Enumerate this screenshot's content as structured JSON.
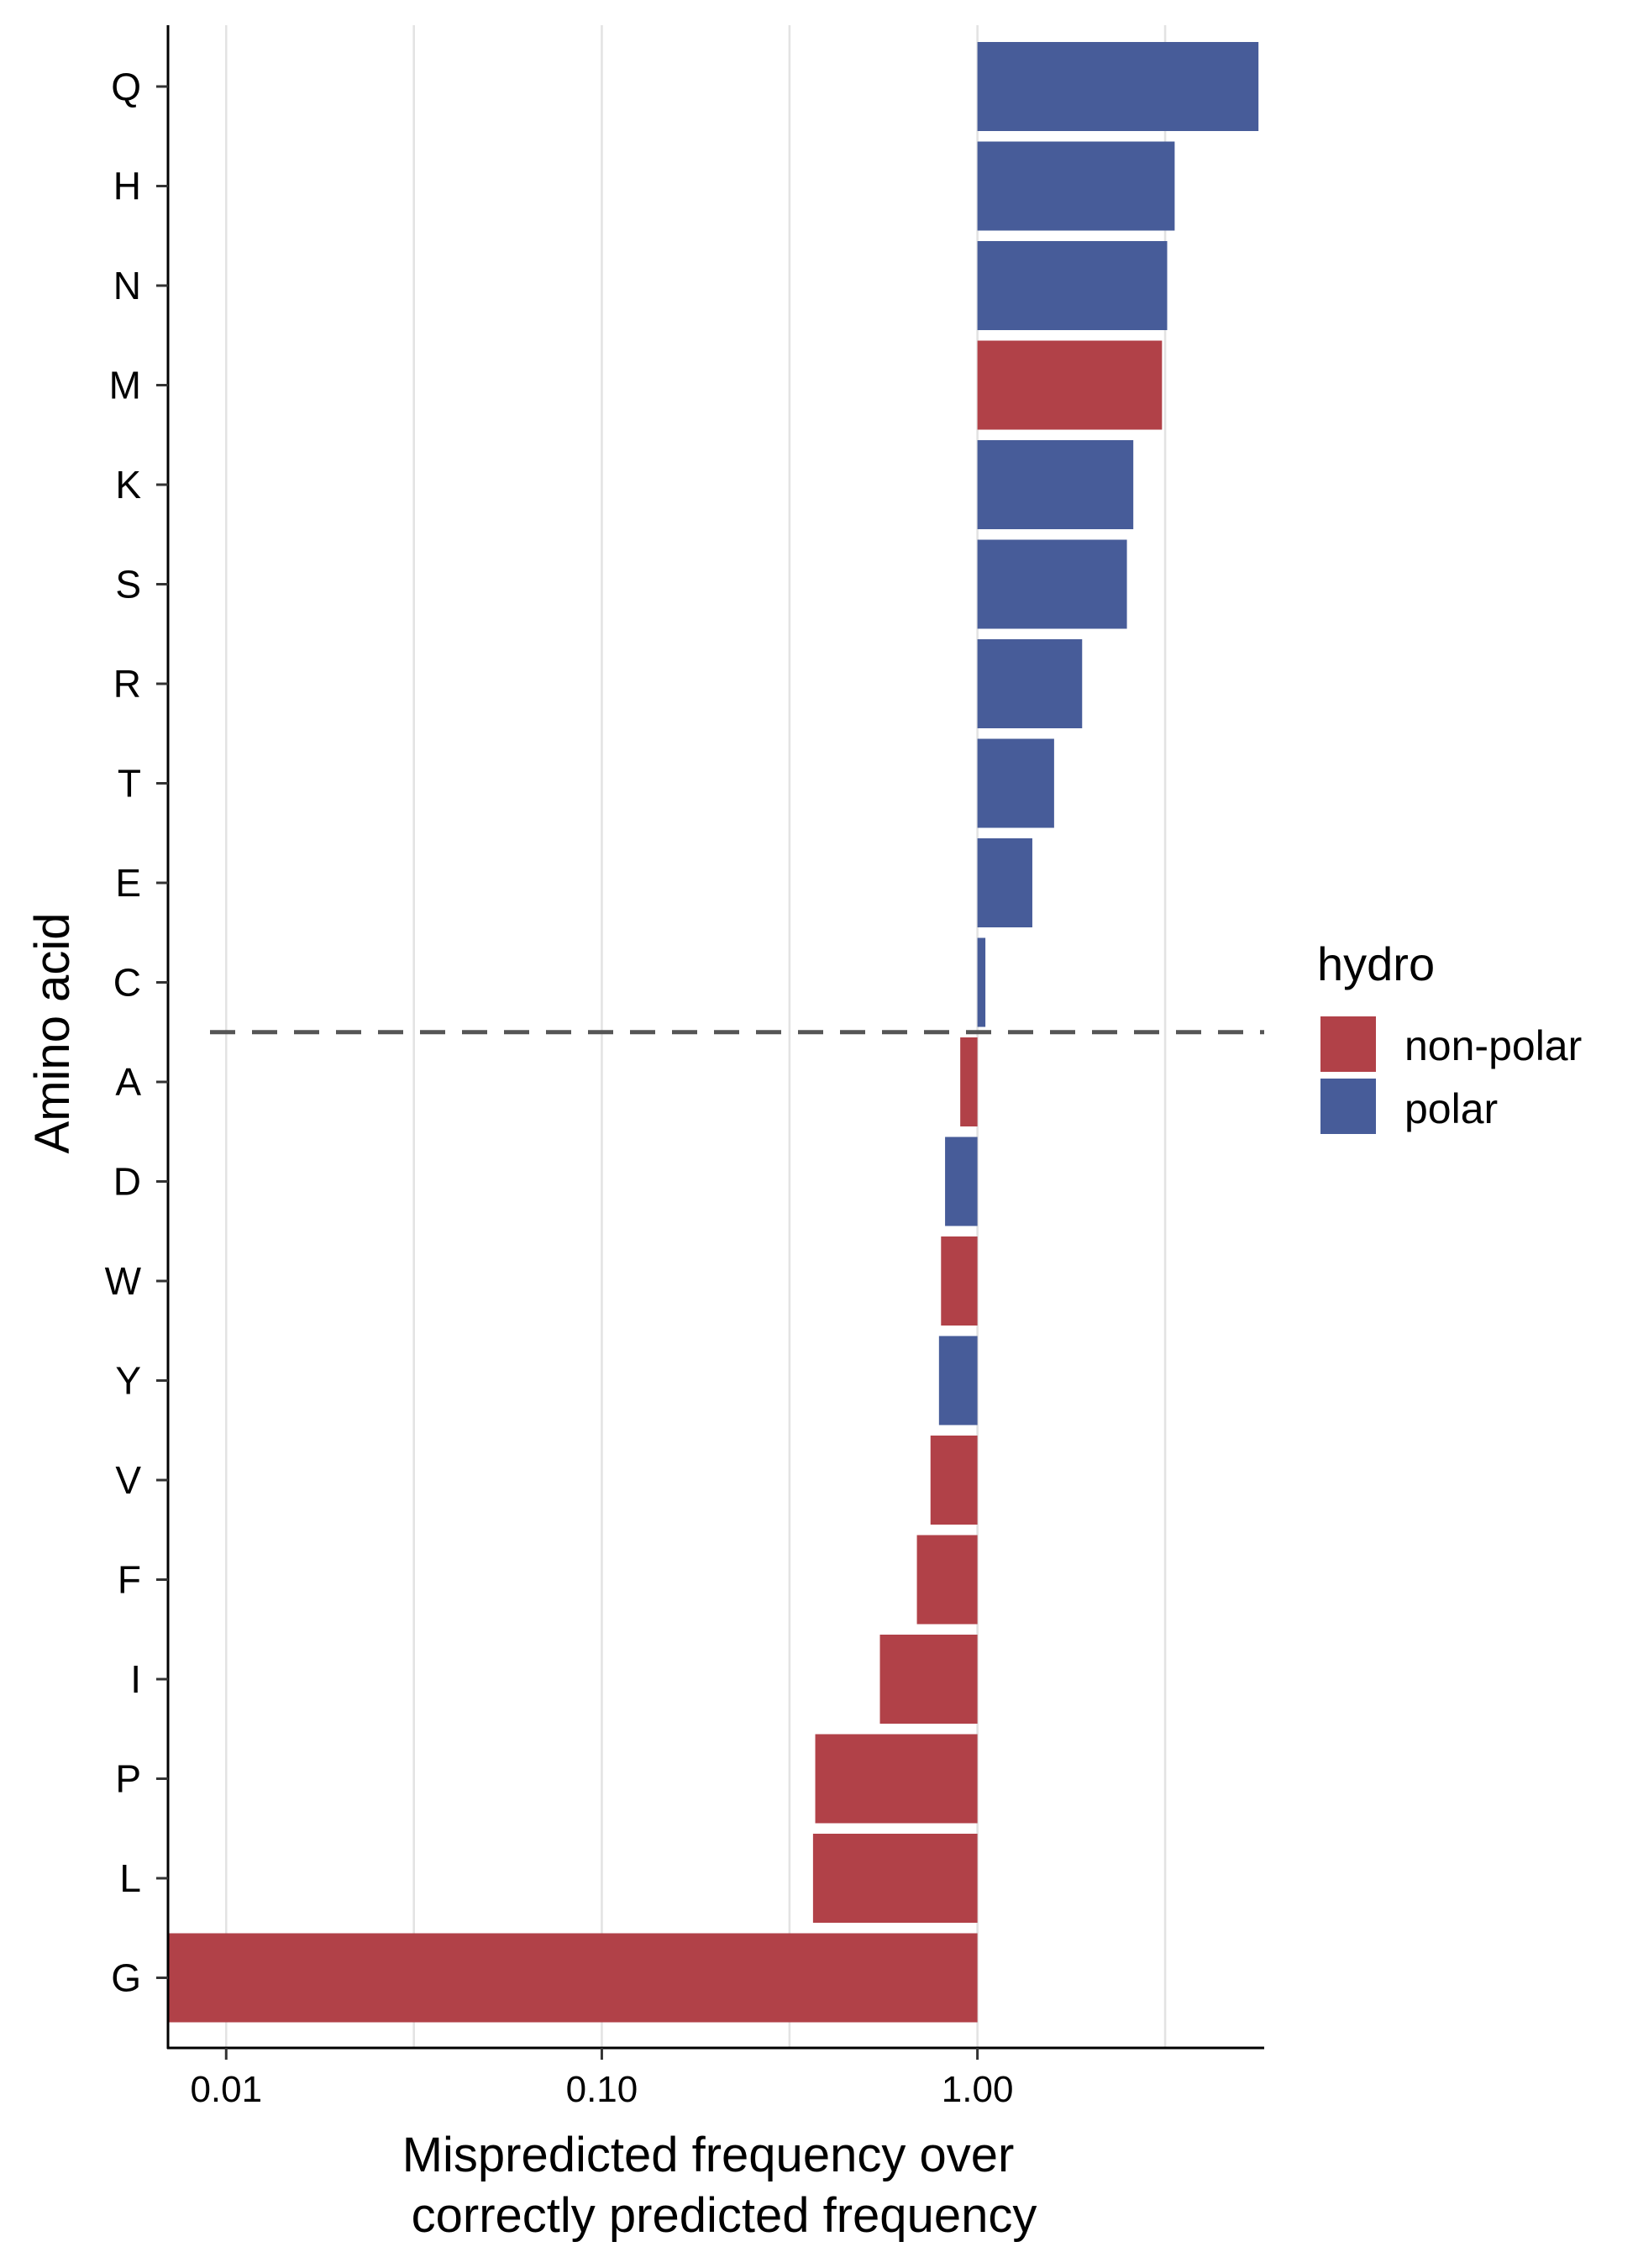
{
  "chart_data": {
    "type": "bar",
    "orientation": "horizontal",
    "x_scale": "log10",
    "x_baseline": 1.0,
    "xlim": [
      0.007,
      5.8
    ],
    "xlabel_line1": "Mispredicted frequency over",
    "xlabel_line2": "correctly predicted frequency",
    "ylabel": "Amino acid",
    "x_ticks": [
      {
        "value": 0.01,
        "label": "0.01"
      },
      {
        "value": 0.1,
        "label": "0.10"
      },
      {
        "value": 1.0,
        "label": "1.00"
      }
    ],
    "x_minor_gridlines": [
      0.0316,
      0.316,
      3.16
    ],
    "grid": "vertical",
    "categories": [
      "Q",
      "H",
      "N",
      "M",
      "K",
      "S",
      "R",
      "T",
      "E",
      "C",
      "A",
      "D",
      "W",
      "Y",
      "V",
      "F",
      "I",
      "P",
      "L",
      "G"
    ],
    "values": [
      5.6,
      3.35,
      3.2,
      3.1,
      2.6,
      2.5,
      1.9,
      1.6,
      1.4,
      1.05,
      0.9,
      0.82,
      0.8,
      0.79,
      0.75,
      0.69,
      0.55,
      0.37,
      0.365,
      0.007
    ],
    "groups": [
      "polar",
      "polar",
      "polar",
      "non-polar",
      "polar",
      "polar",
      "polar",
      "polar",
      "polar",
      "polar",
      "non-polar",
      "polar",
      "non-polar",
      "polar",
      "non-polar",
      "non-polar",
      "non-polar",
      "non-polar",
      "non-polar",
      "non-polar"
    ],
    "separator_after_category": "C",
    "legend": {
      "title": "hydro",
      "placement": "right",
      "entries": [
        {
          "label": "non-polar",
          "color": "#b14148"
        },
        {
          "label": "polar",
          "color": "#475c99"
        }
      ]
    }
  }
}
